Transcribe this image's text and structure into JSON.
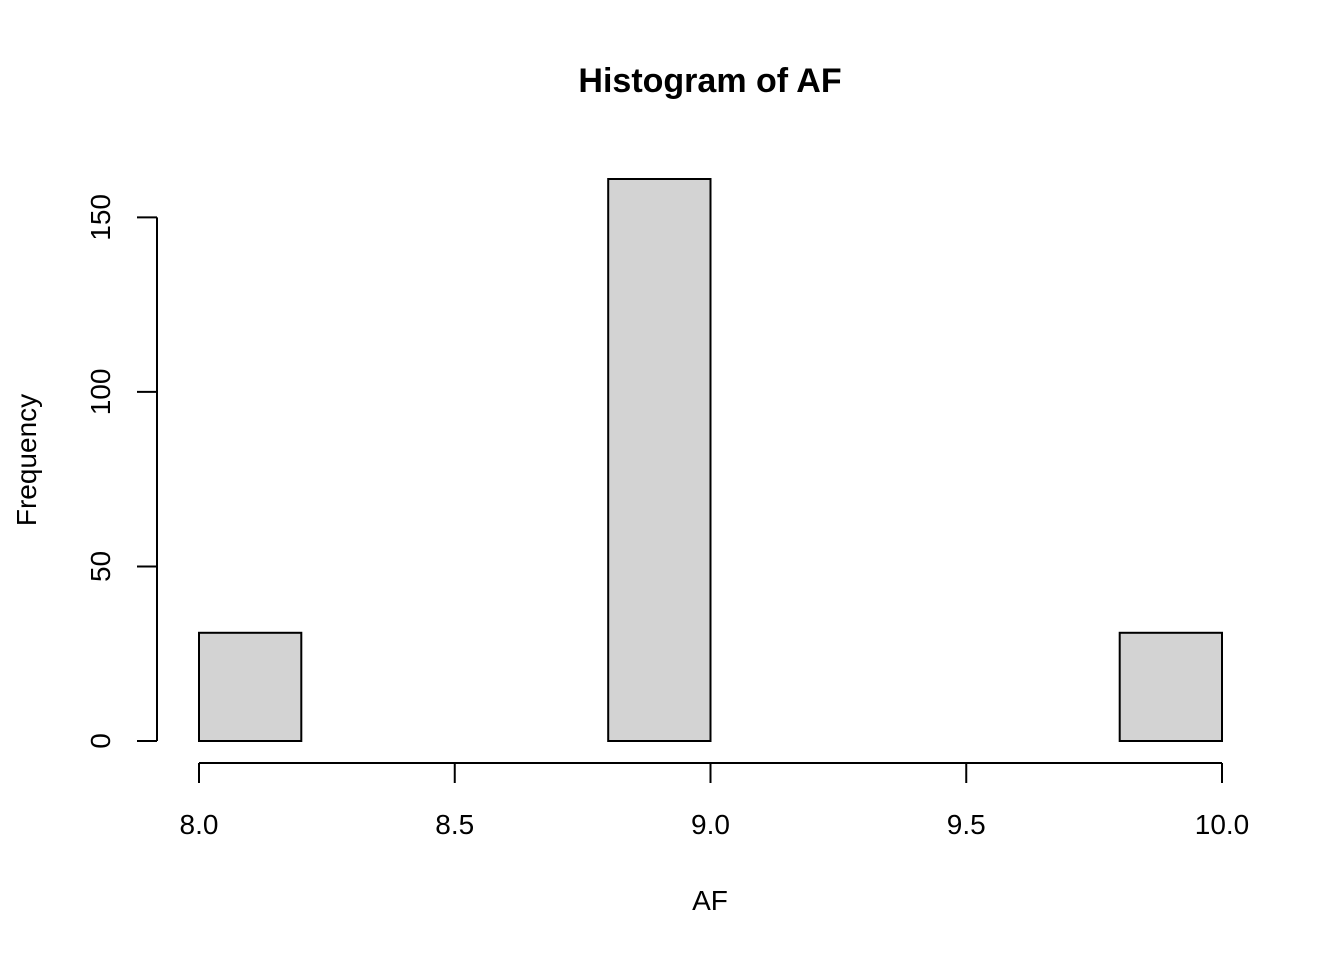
{
  "chart_data": {
    "type": "bar",
    "title": "Histogram of AF",
    "xlabel": "AF",
    "ylabel": "Frequency",
    "bins": [
      {
        "start": 8.0,
        "end": 8.2,
        "count": 31
      },
      {
        "start": 8.2,
        "end": 8.4,
        "count": 0
      },
      {
        "start": 8.4,
        "end": 8.6,
        "count": 0
      },
      {
        "start": 8.6,
        "end": 8.8,
        "count": 0
      },
      {
        "start": 8.8,
        "end": 9.0,
        "count": 161
      },
      {
        "start": 9.0,
        "end": 9.2,
        "count": 0
      },
      {
        "start": 9.2,
        "end": 9.4,
        "count": 0
      },
      {
        "start": 9.4,
        "end": 9.6,
        "count": 0
      },
      {
        "start": 9.6,
        "end": 9.8,
        "count": 0
      },
      {
        "start": 9.8,
        "end": 10.0,
        "count": 31
      }
    ],
    "xlim": [
      8.0,
      10.0
    ],
    "ylim": [
      0,
      161
    ],
    "xticks": [
      {
        "value": 8.0,
        "label": "8.0"
      },
      {
        "value": 8.5,
        "label": "8.5"
      },
      {
        "value": 9.0,
        "label": "9.0"
      },
      {
        "value": 9.5,
        "label": "9.5"
      },
      {
        "value": 10.0,
        "label": "10.0"
      }
    ],
    "yticks": [
      {
        "value": 0,
        "label": "0"
      },
      {
        "value": 50,
        "label": "50"
      },
      {
        "value": 100,
        "label": "100"
      },
      {
        "value": 150,
        "label": "150"
      }
    ],
    "grid": false,
    "legend": "none",
    "bar_fill": "#d3d3d3",
    "bar_stroke": "#000000"
  }
}
